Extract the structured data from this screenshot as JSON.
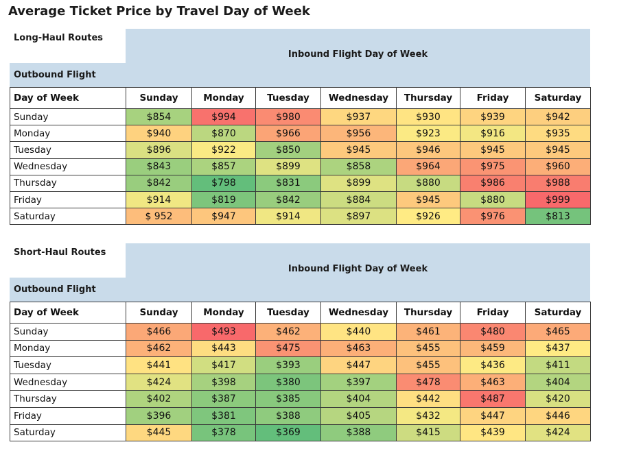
{
  "title": "Average Ticket Price by Travel Day of Week",
  "tables": [
    {
      "name": "Long-Haul Routes",
      "column_group": "Inbound Flight Day of Week",
      "row_group": "Outbound Flight",
      "corner": "Day of Week",
      "columns": [
        "Sunday",
        "Monday",
        "Tuesday",
        "Wednesday",
        "Thursday",
        "Friday",
        "Saturday"
      ],
      "rows": [
        {
          "label": "Sunday",
          "cells": [
            "$854",
            "$994",
            "$980",
            "$937",
            "$930",
            "$939",
            "$942"
          ]
        },
        {
          "label": "Monday",
          "cells": [
            "$940",
            "$870",
            "$966",
            "$956",
            "$923",
            "$916",
            "$935"
          ]
        },
        {
          "label": "Tuesday",
          "cells": [
            "$896",
            "$922",
            "$850",
            "$945",
            "$946",
            "$945",
            "$945"
          ]
        },
        {
          "label": "Wednesday",
          "cells": [
            "$843",
            "$857",
            "$899",
            "$858",
            "$964",
            "$975",
            "$960"
          ]
        },
        {
          "label": "Thursday",
          "cells": [
            "$842",
            "$798",
            "$831",
            "$899",
            "$880",
            "$986",
            "$988"
          ]
        },
        {
          "label": "Friday",
          "cells": [
            "$914",
            "$819",
            "$842",
            "$884",
            "$945",
            "$880",
            "$999"
          ]
        },
        {
          "label": "Saturday",
          "cells": [
            "$ 952",
            "$947",
            "$914",
            "$897",
            "$926",
            "$976",
            "$813"
          ]
        }
      ]
    },
    {
      "name": "Short-Haul Routes",
      "column_group": "Inbound Flight Day of Week",
      "row_group": "Outbound Flight",
      "corner": "Day of Week",
      "columns": [
        "Sunday",
        "Monday",
        "Tuesday",
        "Wednesday",
        "Thursday",
        "Friday",
        "Saturday"
      ],
      "rows": [
        {
          "label": "Sunday",
          "cells": [
            "$466",
            "$493",
            "$462",
            "$440",
            "$461",
            "$480",
            "$465"
          ]
        },
        {
          "label": "Monday",
          "cells": [
            "$462",
            "$443",
            "$475",
            "$463",
            "$455",
            "$459",
            "$437"
          ]
        },
        {
          "label": "Tuesday",
          "cells": [
            "$441",
            "$417",
            "$393",
            "$447",
            "$455",
            "$436",
            "$411"
          ]
        },
        {
          "label": "Wednesday",
          "cells": [
            "$424",
            "$398",
            "$380",
            "$397",
            "$478",
            "$463",
            "$404"
          ]
        },
        {
          "label": "Thursday",
          "cells": [
            "$402",
            "$387",
            "$385",
            "$404",
            "$442",
            "$487",
            "$420"
          ]
        },
        {
          "label": "Friday",
          "cells": [
            "$396",
            "$381",
            "$388",
            "$405",
            "$432",
            "$447",
            "$446"
          ]
        },
        {
          "label": "Saturday",
          "cells": [
            "$445",
            "$378",
            "$369",
            "$388",
            "$415",
            "$439",
            "$424"
          ]
        }
      ]
    }
  ]
}
